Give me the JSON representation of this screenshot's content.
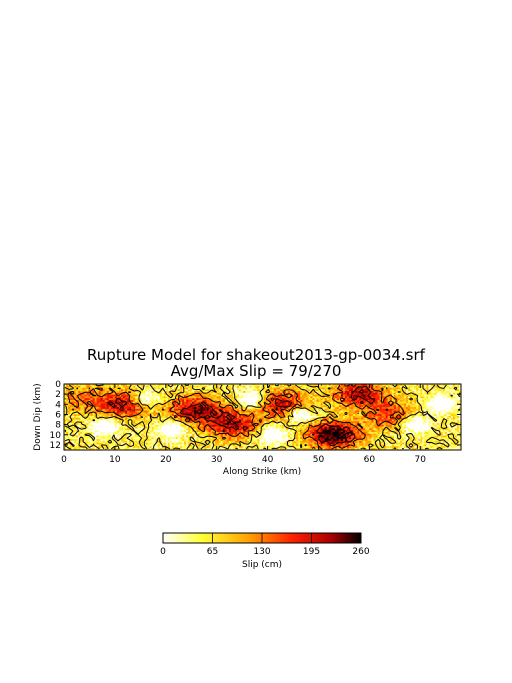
{
  "chart_data": {
    "type": "heatmap",
    "title": "Rupture Model for shakeout2013-gp-0034.srf",
    "subtitle": "Avg/Max Slip = 79/270",
    "xlabel": "Along Strike (km)",
    "ylabel": "Down Dip (km)",
    "xlim": [
      0,
      78
    ],
    "ylim": [
      13,
      0
    ],
    "xticks": [
      0,
      10,
      20,
      30,
      40,
      50,
      60,
      70
    ],
    "yticks": [
      0,
      2,
      4,
      6,
      8,
      10,
      12
    ],
    "avg_slip": 79,
    "max_slip": 270,
    "colorbar": {
      "label": "Slip (cm)",
      "range": [
        0,
        260
      ],
      "ticks": [
        0,
        65,
        130,
        195,
        260
      ],
      "colors": [
        "#ffffff",
        "#ffff33",
        "#ff9900",
        "#ff2200",
        "#aa0000",
        "#000000"
      ]
    },
    "contour_levels": [
      65,
      130,
      195
    ],
    "high_slip_patches": [
      {
        "x": 12,
        "y": 4,
        "slip": 190
      },
      {
        "x": 26,
        "y": 5,
        "slip": 210
      },
      {
        "x": 33,
        "y": 8,
        "slip": 200
      },
      {
        "x": 43,
        "y": 4,
        "slip": 185
      },
      {
        "x": 53,
        "y": 10,
        "slip": 260
      },
      {
        "x": 58,
        "y": 2,
        "slip": 200
      },
      {
        "x": 64,
        "y": 6,
        "slip": 150
      },
      {
        "x": 4,
        "y": 3,
        "slip": 120
      }
    ],
    "low_slip_patches": [
      {
        "x": 8,
        "y": 8.5
      },
      {
        "x": 21,
        "y": 9
      },
      {
        "x": 16,
        "y": 3
      },
      {
        "x": 46.5,
        "y": 6
      },
      {
        "x": 37,
        "y": 3
      },
      {
        "x": 41,
        "y": 10
      },
      {
        "x": 69,
        "y": 8
      },
      {
        "x": 74,
        "y": 4
      }
    ]
  }
}
